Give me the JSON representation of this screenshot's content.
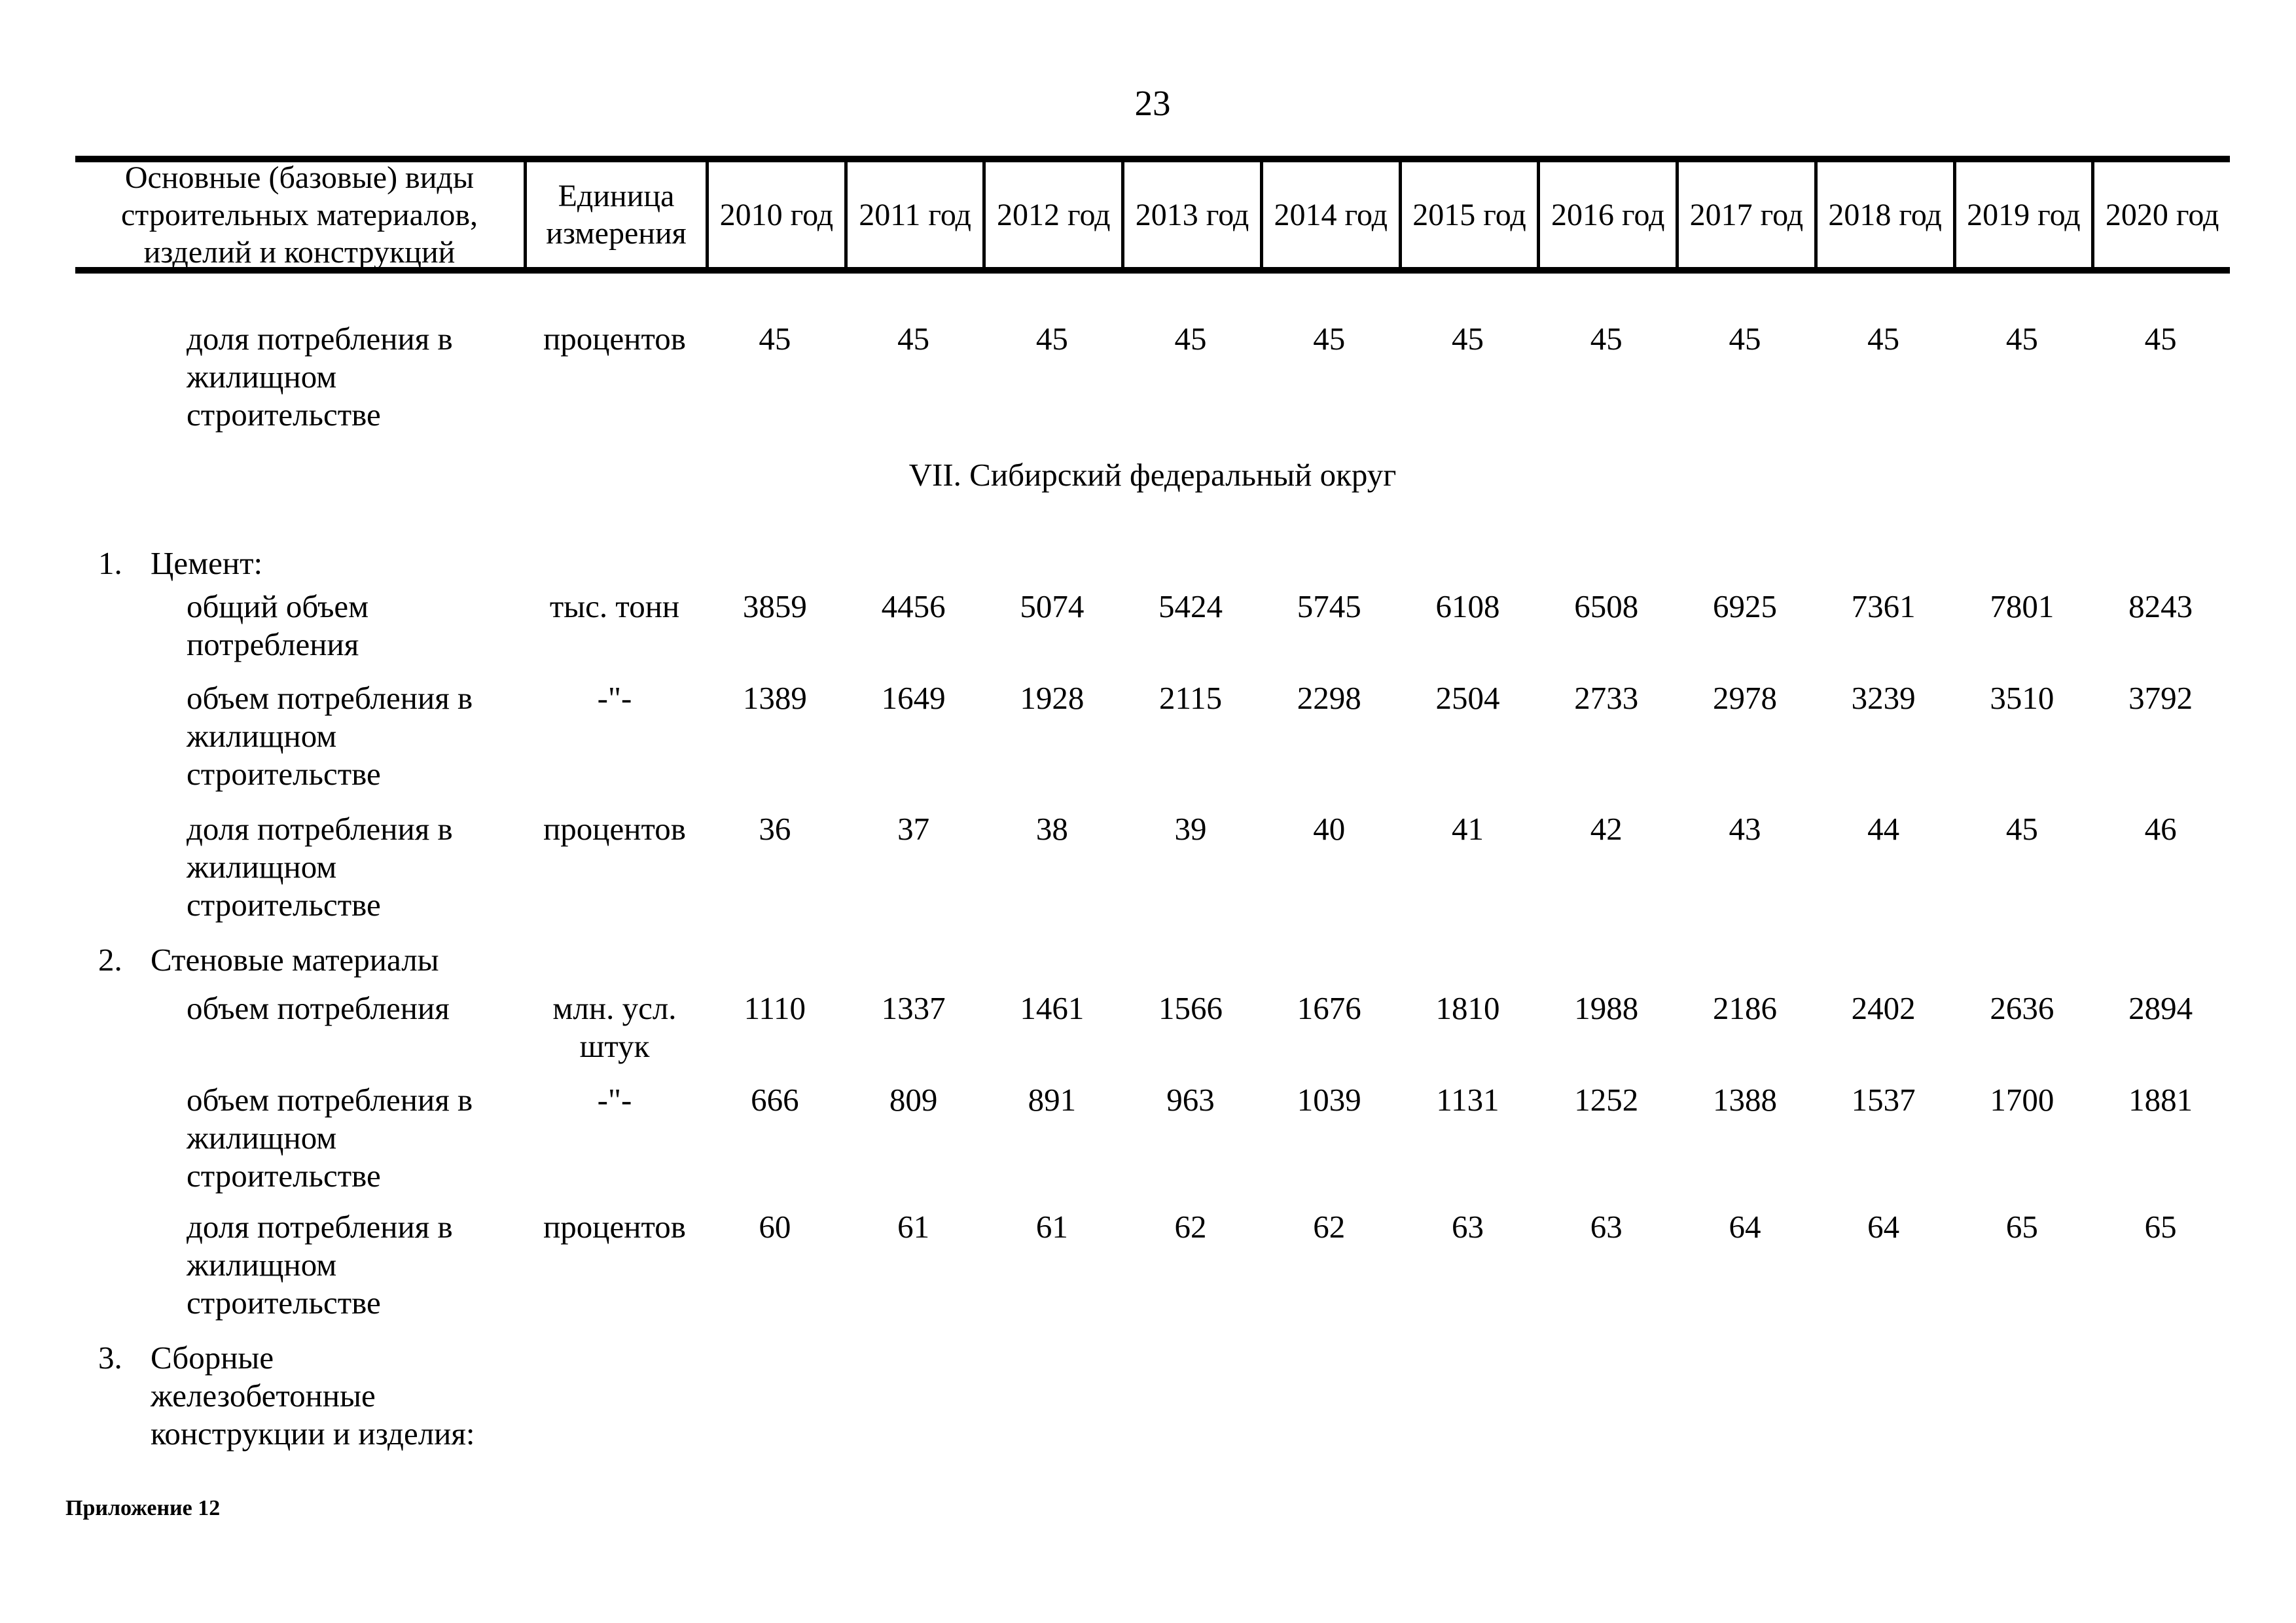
{
  "page": {
    "number": "23",
    "footer_note": "Приложение 12"
  },
  "table": {
    "headers": {
      "materials": "Основные (базовые) виды\nстроительных материалов,\nизделий и конструкций",
      "unit": "Единица\nизмерения",
      "years": [
        "2010 год",
        "2011 год",
        "2012 год",
        "2013 год",
        "2014 год",
        "2015 год",
        "2016 год",
        "2017 год",
        "2018 год",
        "2019 год",
        "2020 год"
      ]
    },
    "rows": [
      {
        "type": "data",
        "label": "доля потребления в\nжилищном\nстроительстве",
        "unit": "процентов",
        "values": [
          "45",
          "45",
          "45",
          "45",
          "45",
          "45",
          "45",
          "45",
          "45",
          "45",
          "45"
        ]
      },
      {
        "type": "section",
        "label": "VII. Сибирский федеральный округ"
      },
      {
        "type": "item",
        "number": "1.",
        "label": "Цемент:"
      },
      {
        "type": "data",
        "label": "общий объем\nпотребления",
        "unit": "тыс. тонн",
        "values": [
          "3859",
          "4456",
          "5074",
          "5424",
          "5745",
          "6108",
          "6508",
          "6925",
          "7361",
          "7801",
          "8243"
        ]
      },
      {
        "type": "data",
        "label": "объем потребления в\nжилищном\nстроительстве",
        "unit": "-\"-",
        "values": [
          "1389",
          "1649",
          "1928",
          "2115",
          "2298",
          "2504",
          "2733",
          "2978",
          "3239",
          "3510",
          "3792"
        ]
      },
      {
        "type": "data",
        "label": "доля потребления в\nжилищном\nстроительстве",
        "unit": "процентов",
        "values": [
          "36",
          "37",
          "38",
          "39",
          "40",
          "41",
          "42",
          "43",
          "44",
          "45",
          "46"
        ]
      },
      {
        "type": "item",
        "number": "2.",
        "label": "Стеновые материалы"
      },
      {
        "type": "data",
        "label": "объем потребления",
        "unit": "млн. усл.\nштук",
        "values": [
          "1110",
          "1337",
          "1461",
          "1566",
          "1676",
          "1810",
          "1988",
          "2186",
          "2402",
          "2636",
          "2894"
        ]
      },
      {
        "type": "data",
        "label": "объем потребления в\nжилищном\nстроительстве",
        "unit": "-\"-",
        "values": [
          "666",
          "809",
          "891",
          "963",
          "1039",
          "1131",
          "1252",
          "1388",
          "1537",
          "1700",
          "1881"
        ]
      },
      {
        "type": "data",
        "label": "доля потребления в\nжилищном\nстроительстве",
        "unit": "процентов",
        "values": [
          "60",
          "61",
          "61",
          "62",
          "62",
          "63",
          "63",
          "64",
          "64",
          "65",
          "65"
        ]
      },
      {
        "type": "item",
        "number": "3.",
        "label": "Сборные\nжелезобетонные\nконструкции и изделия:"
      }
    ]
  }
}
